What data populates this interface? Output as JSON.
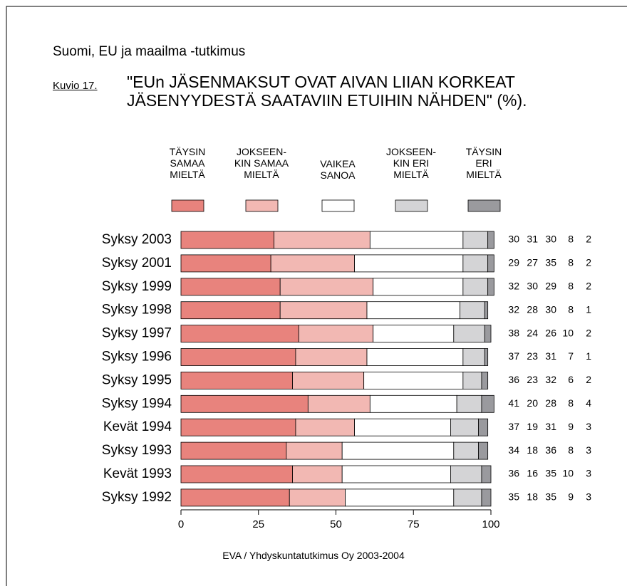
{
  "chart_data": {
    "type": "stacked-barh",
    "subtitle": "Suomi, EU ja maailma -tutkimus",
    "figure_label": "Kuvio 17.",
    "title": "\"EUn JÄSENMAKSUT OVAT AIVAN LIIAN KORKEAT\nJÄSENYYDESTÄ SAATAVIIN ETUIHIN NÄHDEN\" (%).",
    "source": "EVA / Yhdyskuntatutkimus Oy 2003-2004",
    "categories": [
      "Syksy 2003",
      "Syksy 2001",
      "Syksy 1999",
      "Syksy 1998",
      "Syksy 1997",
      "Syksy 1996",
      "Syksy 1995",
      "Syksy 1994",
      "Kevät 1994",
      "Syksy 1993",
      "Kevät 1993",
      "Syksy 1992"
    ],
    "series": [
      {
        "name": "TÄYSIN\nSAMAA\nMIELTÄ",
        "color": "#e8837d",
        "values": [
          30,
          29,
          32,
          32,
          38,
          37,
          36,
          41,
          37,
          34,
          36,
          35
        ]
      },
      {
        "name": "JOKSEEN-\nKIN SAMAA\nMIELTÄ",
        "color": "#f2b8b3",
        "values": [
          31,
          27,
          30,
          28,
          24,
          23,
          23,
          20,
          19,
          18,
          16,
          18
        ]
      },
      {
        "name": "VAIKEA\nSANOA",
        "color": "#ffffff",
        "values": [
          30,
          35,
          29,
          30,
          26,
          31,
          32,
          28,
          31,
          36,
          35,
          35
        ]
      },
      {
        "name": "JOKSEEN-\nKIN ERI\nMIELTÄ",
        "color": "#d4d4d6",
        "values": [
          8,
          8,
          8,
          8,
          10,
          7,
          6,
          8,
          9,
          8,
          10,
          9
        ]
      },
      {
        "name": "TÄYSIN\nERI\nMIELTÄ",
        "color": "#9a9a9e",
        "values": [
          2,
          2,
          2,
          1,
          2,
          1,
          2,
          4,
          3,
          3,
          3,
          3
        ]
      }
    ],
    "xlim": [
      0,
      100
    ],
    "xticks": [
      0,
      25,
      50,
      75,
      100
    ]
  }
}
